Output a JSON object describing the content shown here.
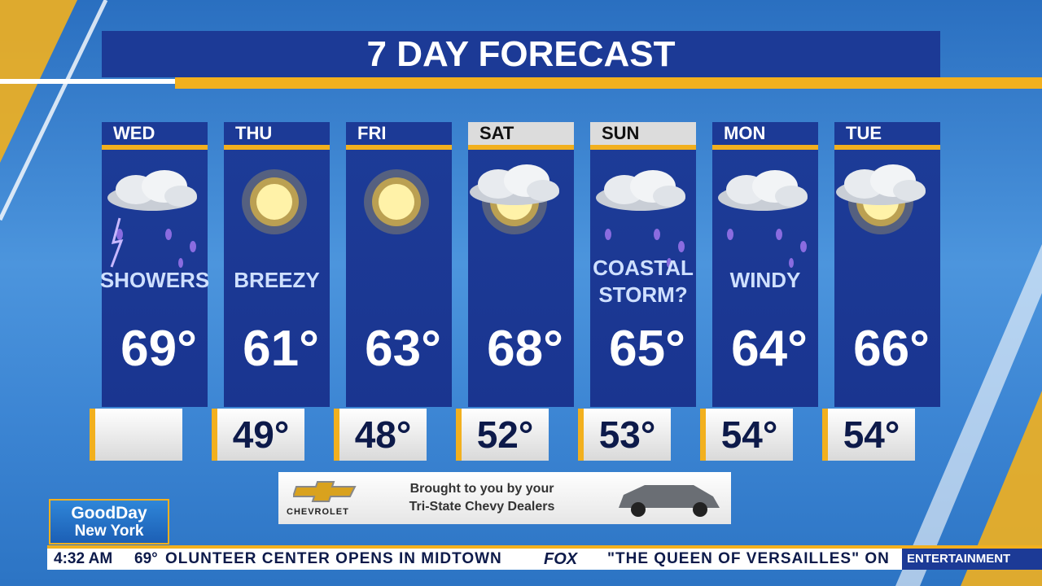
{
  "title": "7 DAY FORECAST",
  "days": [
    {
      "day": "WED",
      "condition": [
        "SHOWERS"
      ],
      "high": "69°"
    },
    {
      "day": "THU",
      "condition": [
        "BREEZY"
      ],
      "high": "61°",
      "low": "49°"
    },
    {
      "day": "FRI",
      "high": "63°",
      "low": "48°"
    },
    {
      "day": "SAT",
      "high": "68°",
      "low": "52°"
    },
    {
      "day": "SUN",
      "condition": [
        "COASTAL",
        "STORM?"
      ],
      "high": "65°",
      "low": "53°"
    },
    {
      "day": "MON",
      "condition": [
        "WINDY"
      ],
      "high": "64°",
      "low": "54°"
    },
    {
      "day": "TUE",
      "high": "66°",
      "low": "54°"
    }
  ],
  "sponsor": {
    "brand": "CHEVROLET",
    "lines": [
      "Brought to you by your",
      "Tri-State Chevy Dealers"
    ]
  },
  "logo": {
    "line1": "GoodDay",
    "line2": "New York"
  },
  "ticker": {
    "time": "4:32 AM",
    "temp": "69°",
    "headline1": "OLUNTEER CENTER OPENS IN MIDTOWN",
    "network": "FOX",
    "headline2": "\"THE QUEEN OF VERSAILLES\" ON",
    "section": "ENTERTAINMENT"
  }
}
